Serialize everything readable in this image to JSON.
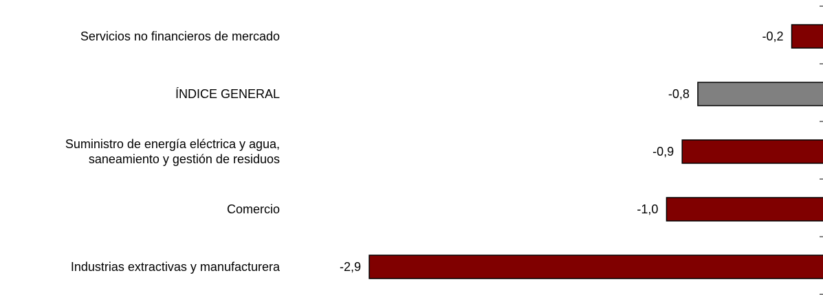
{
  "chart_data": {
    "type": "bar",
    "orientation": "horizontal",
    "categories": [
      "Servicios no financieros de mercado",
      "ÍNDICE GENERAL",
      "Suministro de energía eléctrica y agua,\nsaneamiento y gestión de residuos",
      "Comercio",
      "Industrias extractivas y manufacturera"
    ],
    "values": [
      -0.2,
      -0.8,
      -0.9,
      -1.0,
      -2.9
    ],
    "value_labels": [
      "-0,2",
      "-0,8",
      "-0,9",
      "-1,0",
      "-2,9"
    ],
    "bar_colors": [
      "#800000",
      "#808080",
      "#800000",
      "#800000",
      "#800000"
    ],
    "xlim": [
      -3.7,
      0
    ],
    "title": "",
    "xlabel": "",
    "ylabel": "",
    "grid": false,
    "legend": "none"
  }
}
